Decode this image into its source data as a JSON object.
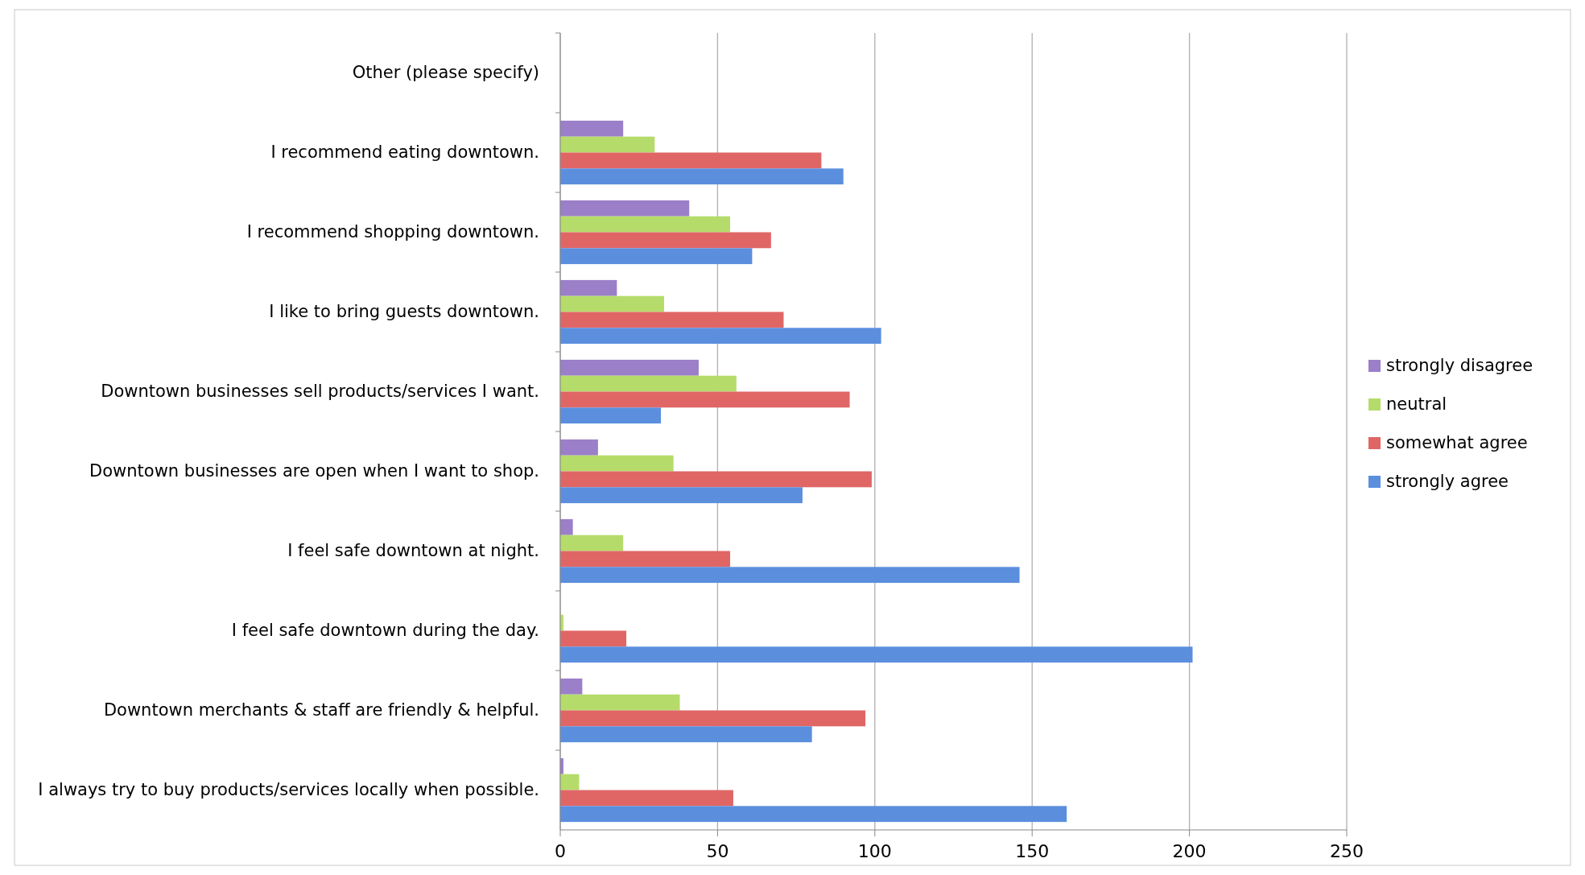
{
  "chart_data": {
    "type": "bar",
    "orientation": "horizontal",
    "categories": [
      "Other (please specify)",
      "I recommend eating downtown.",
      "I recommend shopping downtown.",
      "I like to bring guests downtown.",
      "Downtown businesses sell products/services I want.",
      "Downtown businesses are open when I want to shop.",
      "I feel safe downtown at night.",
      "I feel safe downtown during the day.",
      "Downtown merchants & staff are friendly & helpful.",
      "I always try to buy products/services locally when possible."
    ],
    "series": [
      {
        "name": "strongly disagree",
        "color": "#9b7fc8",
        "values": [
          0,
          20,
          41,
          18,
          44,
          12,
          4,
          0,
          7,
          1
        ]
      },
      {
        "name": "neutral",
        "color": "#b5dc6a",
        "values": [
          0,
          30,
          54,
          33,
          56,
          36,
          20,
          1,
          38,
          6
        ]
      },
      {
        "name": "somewhat agree",
        "color": "#e06666",
        "values": [
          0,
          83,
          67,
          71,
          92,
          99,
          54,
          21,
          97,
          55
        ]
      },
      {
        "name": "strongly agree",
        "color": "#5b8fde",
        "values": [
          0,
          90,
          61,
          102,
          32,
          77,
          146,
          201,
          80,
          161
        ]
      }
    ],
    "xlim": [
      0,
      250
    ],
    "xticks": [
      0,
      50,
      100,
      150,
      200,
      250
    ],
    "grid": "x",
    "legend": "right"
  }
}
